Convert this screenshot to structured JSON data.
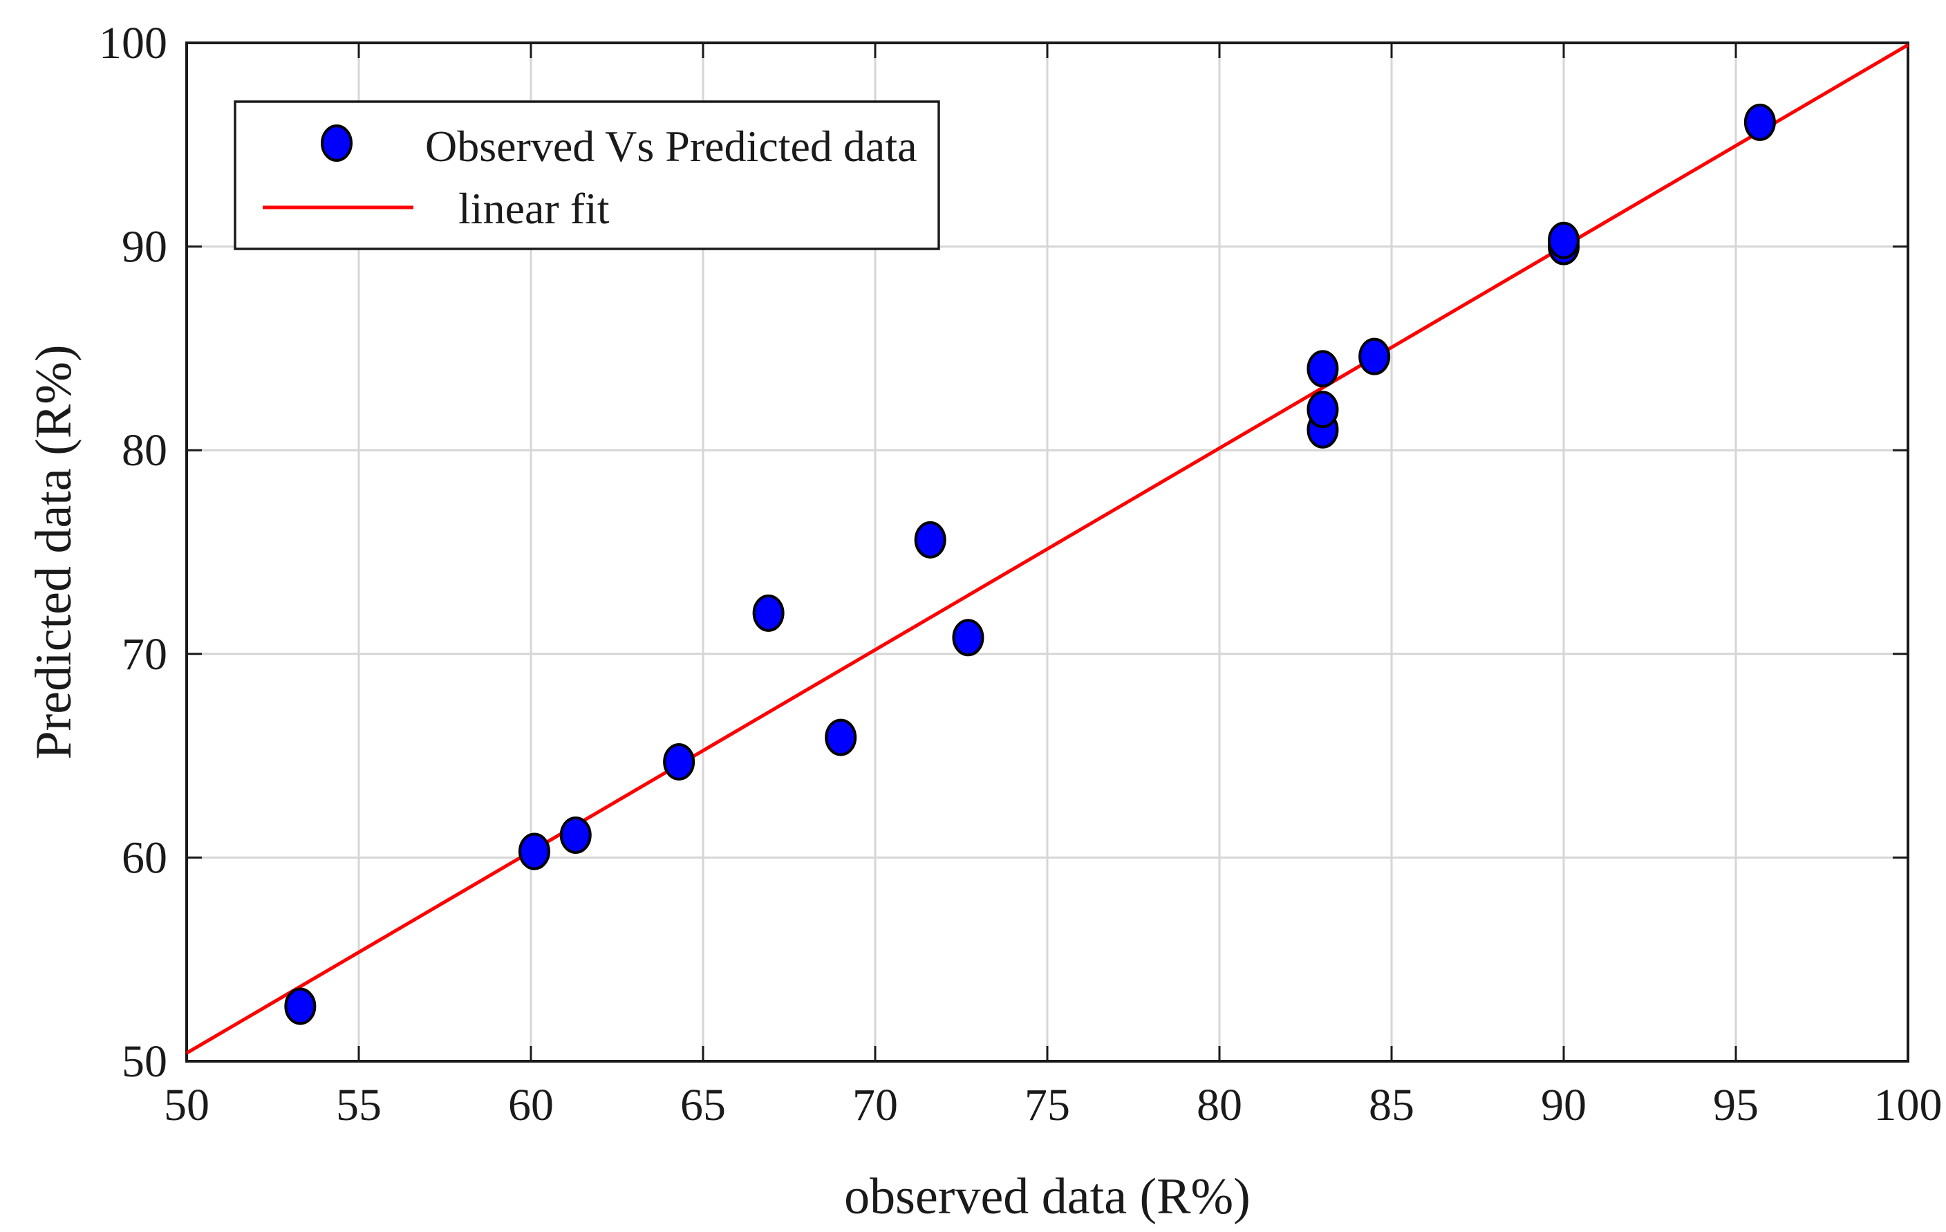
{
  "chart_data": {
    "type": "scatter",
    "title": "",
    "xlabel": "observed data (R%)",
    "ylabel": "Predicted data (R%)",
    "xlim": [
      50,
      100
    ],
    "ylim": [
      50,
      100
    ],
    "xticks": [
      50,
      55,
      60,
      65,
      70,
      75,
      80,
      85,
      90,
      95,
      100
    ],
    "yticks": [
      50,
      60,
      70,
      80,
      90,
      100
    ],
    "xtick_labels": [
      "50",
      "55",
      "60",
      "65",
      "70",
      "75",
      "80",
      "85",
      "90",
      "95",
      "100"
    ],
    "ytick_labels": [
      "50",
      "60",
      "70",
      "80",
      "90",
      "100"
    ],
    "grid": true,
    "legend_position": "top-left",
    "series": [
      {
        "name": "Observed Vs Predicted data",
        "kind": "scatter",
        "color": "#0000ff",
        "edge_color": "#000000",
        "points": [
          {
            "x": 53.3,
            "y": 52.7
          },
          {
            "x": 60.1,
            "y": 60.3
          },
          {
            "x": 61.3,
            "y": 61.1
          },
          {
            "x": 64.3,
            "y": 64.7
          },
          {
            "x": 66.9,
            "y": 72.0
          },
          {
            "x": 69.0,
            "y": 65.9
          },
          {
            "x": 71.6,
            "y": 75.6
          },
          {
            "x": 72.7,
            "y": 70.8
          },
          {
            "x": 83.0,
            "y": 81.0
          },
          {
            "x": 83.0,
            "y": 82.0
          },
          {
            "x": 83.0,
            "y": 84.0
          },
          {
            "x": 84.5,
            "y": 84.6
          },
          {
            "x": 90.0,
            "y": 90.0
          },
          {
            "x": 90.0,
            "y": 90.3
          },
          {
            "x": 95.7,
            "y": 96.1
          }
        ]
      },
      {
        "name": "linear fit",
        "kind": "line",
        "color": "#ff0000",
        "points": [
          {
            "x": 50,
            "y": 50.4
          },
          {
            "x": 100,
            "y": 99.9
          }
        ]
      }
    ]
  }
}
